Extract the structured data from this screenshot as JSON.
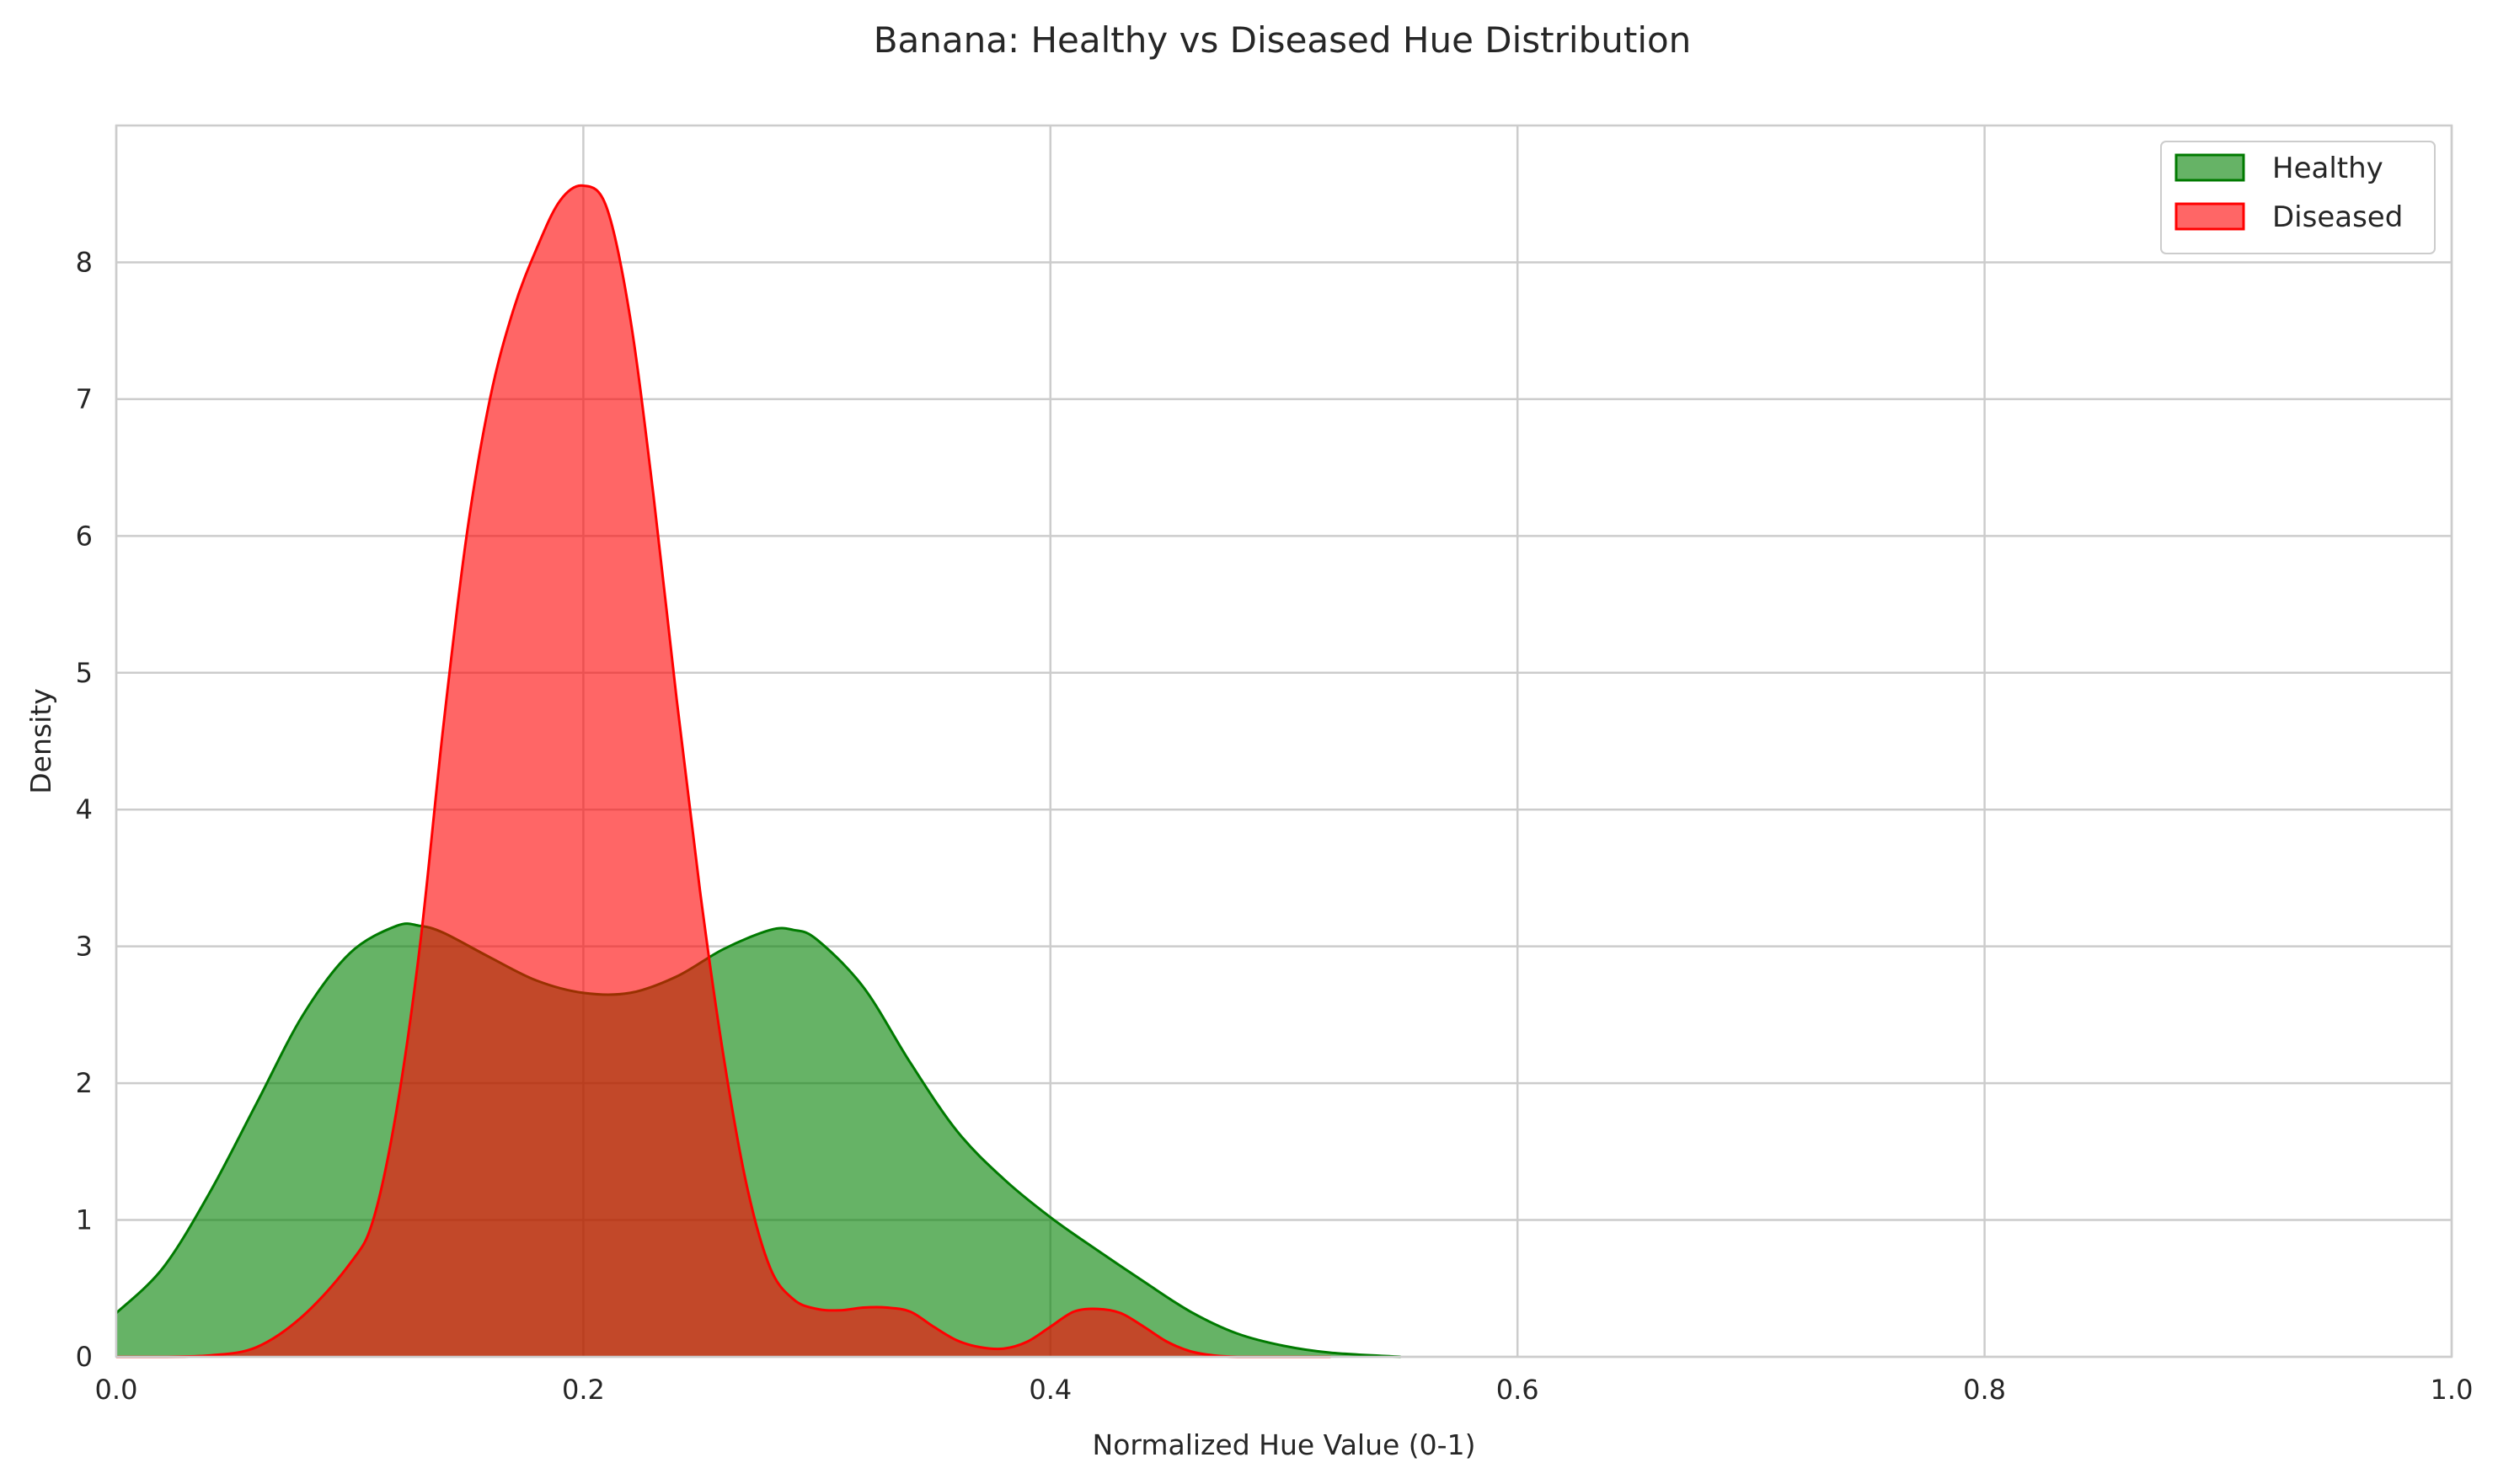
{
  "chart_data": {
    "type": "area",
    "title": "Banana: Healthy vs Diseased Hue Distribution",
    "xlabel": "Normalized Hue Value (0-1)",
    "ylabel": "Density",
    "xlim": [
      0,
      1
    ],
    "ylim": [
      0,
      9
    ],
    "xticks": [
      0.0,
      0.2,
      0.4,
      0.6,
      0.8,
      1.0
    ],
    "xtick_labels": [
      "0.0",
      "0.2",
      "0.4",
      "0.6",
      "0.8",
      "1.0"
    ],
    "yticks": [
      0,
      1,
      2,
      3,
      4,
      5,
      6,
      7,
      8
    ],
    "ytick_labels": [
      "0",
      "1",
      "2",
      "3",
      "4",
      "5",
      "6",
      "7",
      "8"
    ],
    "grid": true,
    "legend_position": "top-right",
    "series": [
      {
        "name": "Healthy",
        "fill_color": "#008000",
        "line_color": "#007a00",
        "fill_opacity": 0.6,
        "x": [
          0.0,
          0.02,
          0.04,
          0.06,
          0.08,
          0.1,
          0.12,
          0.13,
          0.14,
          0.16,
          0.18,
          0.2,
          0.22,
          0.24,
          0.26,
          0.28,
          0.29,
          0.3,
          0.32,
          0.34,
          0.36,
          0.38,
          0.4,
          0.42,
          0.44,
          0.46,
          0.48,
          0.5,
          0.52,
          0.55
        ],
        "y": [
          0.32,
          0.65,
          1.2,
          1.85,
          2.5,
          2.95,
          3.15,
          3.15,
          3.1,
          2.92,
          2.75,
          2.66,
          2.66,
          2.78,
          2.98,
          3.12,
          3.12,
          3.05,
          2.7,
          2.15,
          1.65,
          1.3,
          1.02,
          0.78,
          0.55,
          0.33,
          0.17,
          0.08,
          0.03,
          0.0
        ]
      },
      {
        "name": "Diseased",
        "fill_color": "#ff0000",
        "line_color": "#ff0000",
        "fill_opacity": 0.6,
        "x": [
          0.0,
          0.02,
          0.04,
          0.06,
          0.08,
          0.1,
          0.11,
          0.12,
          0.13,
          0.14,
          0.15,
          0.16,
          0.17,
          0.18,
          0.19,
          0.2,
          0.21,
          0.22,
          0.23,
          0.24,
          0.25,
          0.26,
          0.27,
          0.28,
          0.29,
          0.3,
          0.31,
          0.32,
          0.33,
          0.34,
          0.35,
          0.36,
          0.37,
          0.38,
          0.39,
          0.4,
          0.41,
          0.42,
          0.43,
          0.44,
          0.45,
          0.46,
          0.47,
          0.48,
          0.5,
          0.52
        ],
        "y": [
          0.0,
          0.0,
          0.01,
          0.07,
          0.3,
          0.68,
          1.0,
          1.8,
          3.0,
          4.6,
          6.0,
          7.0,
          7.65,
          8.1,
          8.45,
          8.56,
          8.4,
          7.6,
          6.3,
          4.8,
          3.4,
          2.2,
          1.25,
          0.65,
          0.42,
          0.35,
          0.34,
          0.36,
          0.36,
          0.33,
          0.22,
          0.12,
          0.07,
          0.06,
          0.11,
          0.22,
          0.33,
          0.35,
          0.32,
          0.22,
          0.11,
          0.04,
          0.01,
          0.0,
          0.0,
          0.0
        ]
      }
    ]
  }
}
